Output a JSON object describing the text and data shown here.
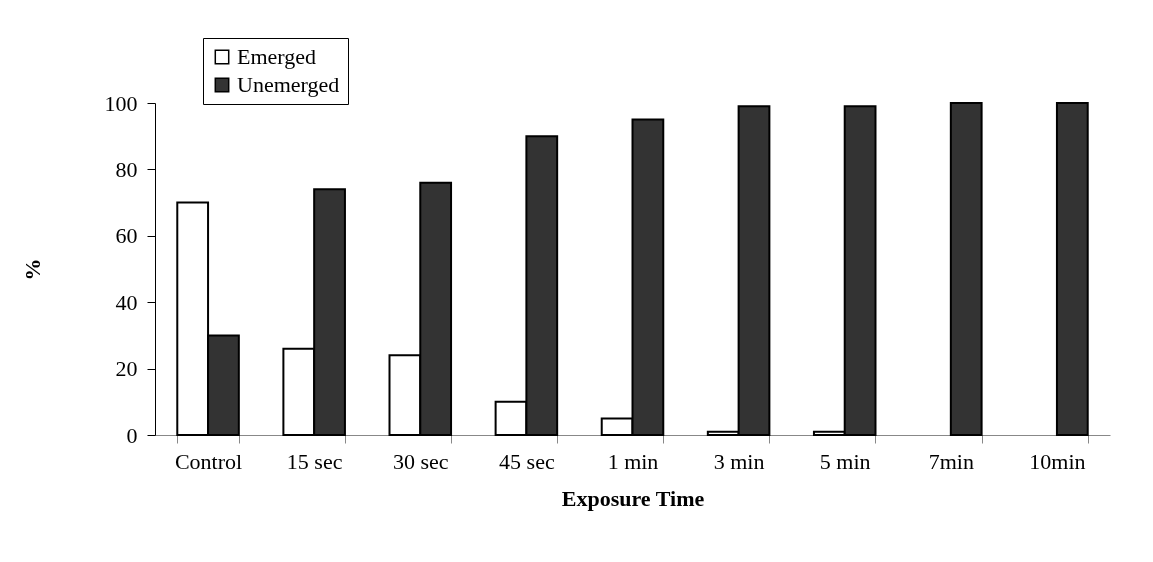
{
  "chart_data": {
    "type": "bar",
    "xlabel": "Exposure Time",
    "ylabel": "%",
    "categories": [
      "Control",
      "15 sec",
      "30 sec",
      "45 sec",
      "1 min",
      "3 min",
      "5 min",
      "7min",
      "10min"
    ],
    "series": [
      {
        "name": "Emerged",
        "color": "#ffffff",
        "values": [
          70,
          26,
          24,
          10,
          5,
          1,
          1,
          0,
          0
        ]
      },
      {
        "name": "Unemerged",
        "color": "#333333",
        "values": [
          30,
          74,
          76,
          90,
          95,
          99,
          99,
          100,
          100
        ]
      }
    ],
    "ylim": [
      0,
      100
    ],
    "yticks": [
      0,
      20,
      40,
      60,
      80,
      100
    ],
    "grid": false,
    "legend": "top left"
  }
}
